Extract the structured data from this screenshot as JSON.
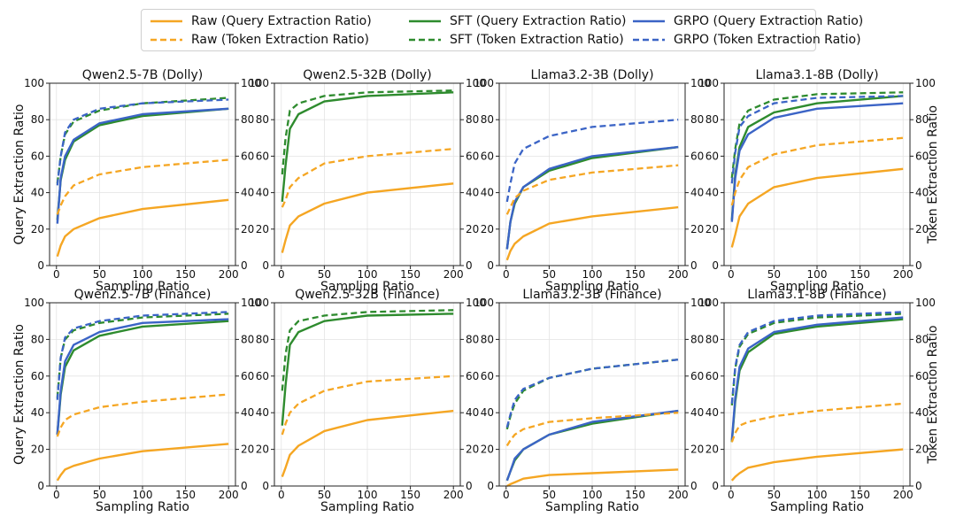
{
  "legend": {
    "entries": [
      {
        "label": "Raw (Query Extraction Ratio)",
        "color": "#F5A623",
        "style": "solid"
      },
      {
        "label": "SFT (Query Extraction Ratio)",
        "color": "#2E8B2E",
        "style": "solid"
      },
      {
        "label": "GRPO (Query Extraction Ratio)",
        "color": "#3B64C6",
        "style": "solid"
      },
      {
        "label": "Raw (Token Extraction Ratio)",
        "color": "#F5A623",
        "style": "dashed"
      },
      {
        "label": "SFT (Token Extraction Ratio)",
        "color": "#2E8B2E",
        "style": "dashed"
      },
      {
        "label": "GRPO (Token Extraction Ratio)",
        "color": "#3B64C6",
        "style": "dashed"
      }
    ]
  },
  "axes_common": {
    "xlabel": "Sampling Ratio",
    "ylabel_left": "Query Extraction Ratio",
    "ylabel_right": "Token Extraction Ratio",
    "xlim": [
      -8,
      208
    ],
    "ylim": [
      0,
      100
    ],
    "xticks": [
      0,
      50,
      100,
      150,
      200
    ],
    "yticks": [
      0,
      20,
      40,
      60,
      80,
      100
    ],
    "grid": true
  },
  "chart_data": [
    {
      "type": "line",
      "title": "Qwen2.5-7B (Dolly)",
      "x": [
        1,
        5,
        10,
        20,
        50,
        100,
        200
      ],
      "series": [
        {
          "name": "Raw (Query Extraction Ratio)",
          "values": [
            5,
            11,
            16,
            20,
            26,
            31,
            36
          ]
        },
        {
          "name": "SFT (Query Extraction Ratio)",
          "values": [
            25,
            47,
            58,
            68,
            77,
            82,
            86
          ]
        },
        {
          "name": "GRPO (Query Extraction Ratio)",
          "values": [
            23,
            48,
            60,
            69,
            78,
            83,
            86
          ]
        },
        {
          "name": "Raw (Token Extraction Ratio)",
          "values": [
            28,
            33,
            38,
            44,
            50,
            54,
            58
          ]
        },
        {
          "name": "SFT (Token Extraction Ratio)",
          "values": [
            45,
            60,
            72,
            79,
            85,
            89,
            92
          ]
        },
        {
          "name": "GRPO (Token Extraction Ratio)",
          "values": [
            44,
            60,
            73,
            80,
            86,
            89,
            91
          ]
        }
      ]
    },
    {
      "type": "line",
      "title": "Qwen2.5-32B (Dolly)",
      "x": [
        1,
        5,
        10,
        20,
        50,
        100,
        200
      ],
      "series": [
        {
          "name": "Raw (Query Extraction Ratio)",
          "values": [
            7,
            14,
            22,
            27,
            34,
            40,
            45
          ]
        },
        {
          "name": "SFT (Query Extraction Ratio)",
          "values": [
            35,
            55,
            75,
            83,
            90,
            93,
            95
          ]
        },
        {
          "name": "Raw (Token Extraction Ratio)",
          "values": [
            32,
            36,
            43,
            48,
            56,
            60,
            64
          ]
        },
        {
          "name": "SFT (Token Extraction Ratio)",
          "values": [
            50,
            70,
            85,
            89,
            93,
            95,
            96
          ]
        }
      ]
    },
    {
      "type": "line",
      "title": "Llama3.2-3B (Dolly)",
      "x": [
        1,
        5,
        10,
        20,
        50,
        100,
        200
      ],
      "series": [
        {
          "name": "Raw (Query Extraction Ratio)",
          "values": [
            3,
            8,
            12,
            16,
            23,
            27,
            32
          ]
        },
        {
          "name": "SFT (Query Extraction Ratio)",
          "values": [
            9,
            24,
            34,
            43,
            52,
            59,
            65
          ]
        },
        {
          "name": "GRPO (Query Extraction Ratio)",
          "values": [
            9,
            24,
            35,
            43,
            53,
            60,
            65
          ]
        },
        {
          "name": "Raw (Token Extraction Ratio)",
          "values": [
            28,
            32,
            37,
            41,
            47,
            51,
            55
          ]
        },
        {
          "name": "GRPO (Token Extraction Ratio)",
          "values": [
            35,
            45,
            56,
            64,
            71,
            76,
            80
          ]
        }
      ]
    },
    {
      "type": "line",
      "title": "Llama3.1-8B (Dolly)",
      "x": [
        1,
        5,
        10,
        20,
        50,
        100,
        200
      ],
      "series": [
        {
          "name": "Raw (Query Extraction Ratio)",
          "values": [
            10,
            17,
            27,
            34,
            43,
            48,
            53
          ]
        },
        {
          "name": "SFT (Query Extraction Ratio)",
          "values": [
            25,
            50,
            65,
            76,
            84,
            89,
            93
          ]
        },
        {
          "name": "GRPO (Query Extraction Ratio)",
          "values": [
            24,
            48,
            63,
            72,
            81,
            86,
            89
          ]
        },
        {
          "name": "Raw (Token Extraction Ratio)",
          "values": [
            33,
            40,
            47,
            54,
            61,
            66,
            70
          ]
        },
        {
          "name": "SFT (Token Extraction Ratio)",
          "values": [
            48,
            64,
            78,
            85,
            91,
            94,
            95
          ]
        },
        {
          "name": "GRPO (Token Extraction Ratio)",
          "values": [
            45,
            62,
            76,
            82,
            89,
            92,
            93
          ]
        }
      ]
    },
    {
      "type": "line",
      "title": "Qwen2.5-7B (Finance)",
      "x": [
        1,
        5,
        10,
        20,
        50,
        100,
        200
      ],
      "series": [
        {
          "name": "Raw (Query Extraction Ratio)",
          "values": [
            3,
            6,
            9,
            11,
            15,
            19,
            23
          ]
        },
        {
          "name": "SFT (Query Extraction Ratio)",
          "values": [
            28,
            50,
            65,
            74,
            82,
            87,
            90
          ]
        },
        {
          "name": "GRPO (Query Extraction Ratio)",
          "values": [
            28,
            52,
            68,
            77,
            84,
            89,
            91
          ]
        },
        {
          "name": "Raw (Token Extraction Ratio)",
          "values": [
            27,
            32,
            36,
            39,
            43,
            46,
            50
          ]
        },
        {
          "name": "SFT (Token Extraction Ratio)",
          "values": [
            48,
            70,
            80,
            85,
            89,
            92,
            94
          ]
        },
        {
          "name": "GRPO (Token Extraction Ratio)",
          "values": [
            47,
            70,
            81,
            86,
            90,
            93,
            95
          ]
        }
      ]
    },
    {
      "type": "line",
      "title": "Qwen2.5-32B (Finance)",
      "x": [
        1,
        5,
        10,
        20,
        50,
        100,
        200
      ],
      "series": [
        {
          "name": "Raw (Query Extraction Ratio)",
          "values": [
            5,
            10,
            17,
            22,
            30,
            36,
            41
          ]
        },
        {
          "name": "SFT (Query Extraction Ratio)",
          "values": [
            33,
            55,
            77,
            84,
            90,
            93,
            94
          ]
        },
        {
          "name": "Raw (Token Extraction Ratio)",
          "values": [
            28,
            34,
            40,
            45,
            52,
            57,
            60
          ]
        },
        {
          "name": "SFT (Token Extraction Ratio)",
          "values": [
            52,
            72,
            85,
            90,
            93,
            95,
            96
          ]
        }
      ]
    },
    {
      "type": "line",
      "title": "Llama3.2-3B (Finance)",
      "x": [
        1,
        5,
        10,
        20,
        50,
        100,
        200
      ],
      "series": [
        {
          "name": "Raw (Query Extraction Ratio)",
          "values": [
            0,
            1,
            2,
            4,
            6,
            7,
            9
          ]
        },
        {
          "name": "SFT (Query Extraction Ratio)",
          "values": [
            3,
            8,
            14,
            20,
            28,
            34,
            41
          ]
        },
        {
          "name": "GRPO (Query Extraction Ratio)",
          "values": [
            3,
            8,
            15,
            20,
            28,
            35,
            41
          ]
        },
        {
          "name": "Raw (Token Extraction Ratio)",
          "values": [
            22,
            25,
            28,
            31,
            35,
            37,
            40
          ]
        },
        {
          "name": "SFT (Token Extraction Ratio)",
          "values": [
            31,
            38,
            45,
            52,
            59,
            64,
            69
          ]
        },
        {
          "name": "GRPO (Token Extraction Ratio)",
          "values": [
            32,
            39,
            47,
            53,
            59,
            64,
            69
          ]
        }
      ]
    },
    {
      "type": "line",
      "title": "Llama3.1-8B (Finance)",
      "x": [
        1,
        5,
        10,
        20,
        50,
        100,
        200
      ],
      "series": [
        {
          "name": "Raw (Query Extraction Ratio)",
          "values": [
            3,
            5,
            7,
            10,
            13,
            16,
            20
          ]
        },
        {
          "name": "SFT (Query Extraction Ratio)",
          "values": [
            24,
            46,
            63,
            73,
            83,
            87,
            91
          ]
        },
        {
          "name": "GRPO (Query Extraction Ratio)",
          "values": [
            25,
            48,
            65,
            75,
            84,
            88,
            92
          ]
        },
        {
          "name": "Raw (Token Extraction Ratio)",
          "values": [
            24,
            29,
            33,
            35,
            38,
            41,
            45
          ]
        },
        {
          "name": "SFT (Token Extraction Ratio)",
          "values": [
            44,
            64,
            76,
            83,
            89,
            92,
            94
          ]
        },
        {
          "name": "GRPO (Token Extraction Ratio)",
          "values": [
            45,
            65,
            77,
            84,
            90,
            93,
            95
          ]
        }
      ]
    }
  ]
}
